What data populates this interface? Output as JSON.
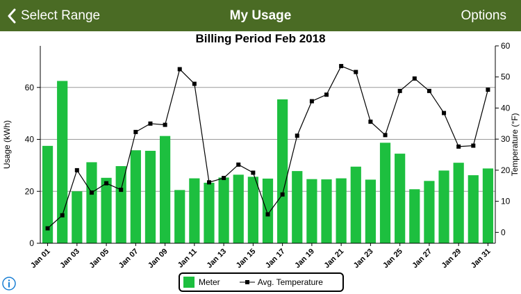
{
  "header": {
    "back_label": "Select Range",
    "title": "My Usage",
    "options_label": "Options"
  },
  "colors": {
    "nav_bg": "#4a6b24",
    "bar": "#1dbf3f",
    "line": "#000000",
    "grid": "#999999"
  },
  "icons": {
    "back": "chevron-left-icon",
    "info": "info-circle-icon"
  },
  "chart_data": {
    "type": "bar",
    "title": "Billing Period Feb 2018",
    "ylabel": "Usage (kWh)",
    "y2label": "Temperature (°F)",
    "ylim": [
      0,
      76
    ],
    "y_ticks": [
      0,
      20,
      40,
      60
    ],
    "y2lim": [
      -3.5,
      60
    ],
    "y2_ticks": [
      0,
      10,
      20,
      30,
      40,
      50,
      60
    ],
    "grid": true,
    "legend_position": "bottom-center",
    "categories": [
      "Jan 01",
      "Jan 02",
      "Jan 03",
      "Jan 04",
      "Jan 05",
      "Jan 06",
      "Jan 07",
      "Jan 08",
      "Jan 09",
      "Jan 10",
      "Jan 11",
      "Jan 12",
      "Jan 13",
      "Jan 14",
      "Jan 15",
      "Jan 16",
      "Jan 17",
      "Jan 18",
      "Jan 19",
      "Jan 20",
      "Jan 21",
      "Jan 22",
      "Jan 23",
      "Jan 24",
      "Jan 25",
      "Jan 26",
      "Jan 27",
      "Jan 28",
      "Jan 29",
      "Jan 30",
      "Jan 31"
    ],
    "x_tick_labels": [
      "Jan 01",
      "Jan 03",
      "Jan 05",
      "Jan 07",
      "Jan 09",
      "Jan 11",
      "Jan 13",
      "Jan 15",
      "Jan 17",
      "Jan 19",
      "Jan 21",
      "Jan 23",
      "Jan 25",
      "Jan 27",
      "Jan 29",
      "Jan 31"
    ],
    "series": [
      {
        "name": "Meter",
        "type": "bar",
        "axis": "left",
        "values": [
          37.5,
          62.5,
          20,
          31.2,
          25.2,
          29.7,
          35.8,
          35.6,
          41.3,
          20.5,
          25,
          23.3,
          25.3,
          26.4,
          25.6,
          24.9,
          55.4,
          27.8,
          24.7,
          24.6,
          25,
          29.5,
          24.5,
          38.7,
          34.5,
          20.8,
          24,
          28,
          31,
          26.2,
          28.8
        ]
      },
      {
        "name": "Avg. Temperature",
        "type": "line",
        "axis": "right",
        "values": [
          1.3,
          5.5,
          20,
          12.8,
          15.8,
          13.7,
          32.3,
          35,
          34.6,
          52.5,
          47.8,
          16.1,
          17.5,
          21.8,
          19.2,
          5.8,
          12.2,
          31.1,
          42.2,
          44.3,
          53.5,
          51.6,
          35.6,
          31.3,
          45.5,
          49.5,
          45.5,
          38.4,
          27.6,
          27.9,
          45.9
        ]
      }
    ]
  }
}
